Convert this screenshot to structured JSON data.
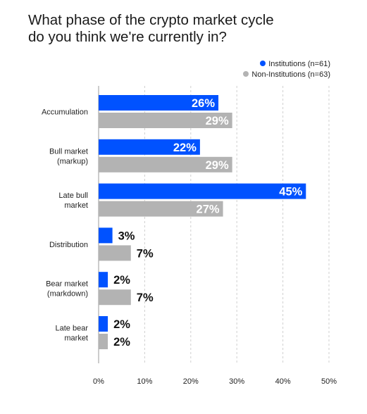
{
  "chart_data": {
    "type": "bar",
    "orientation": "horizontal",
    "title_lines": [
      "What phase of the crypto market cycle",
      "do you think we're currently in?"
    ],
    "xlabel": "",
    "ylabel": "",
    "xlim": [
      0,
      50
    ],
    "x_ticks": [
      "0%",
      "10%",
      "20%",
      "30%",
      "40%",
      "50%"
    ],
    "x_tick_values": [
      0,
      10,
      20,
      30,
      40,
      50
    ],
    "grid": "vertical dashed",
    "legend_position": "top-right",
    "categories": [
      [
        "Accumulation"
      ],
      [
        "Bull market",
        "(markup)"
      ],
      [
        "Late bull",
        "market"
      ],
      [
        "Distribution"
      ],
      [
        "Bear market",
        "(markdown)"
      ],
      [
        "Late bear",
        "market"
      ]
    ],
    "series": [
      {
        "name": "Institutions (n=61)",
        "color": "#0052ff",
        "values": [
          26,
          22,
          45,
          3,
          2,
          2
        ],
        "labels": [
          "26%",
          "22%",
          "45%",
          "3%",
          "2%",
          "2%"
        ]
      },
      {
        "name": "Non-Institutions (n=63)",
        "color": "#b3b3b3",
        "values": [
          29,
          29,
          27,
          7,
          7,
          2
        ],
        "labels": [
          "29%",
          "29%",
          "27%",
          "7%",
          "7%",
          "2%"
        ]
      }
    ]
  }
}
